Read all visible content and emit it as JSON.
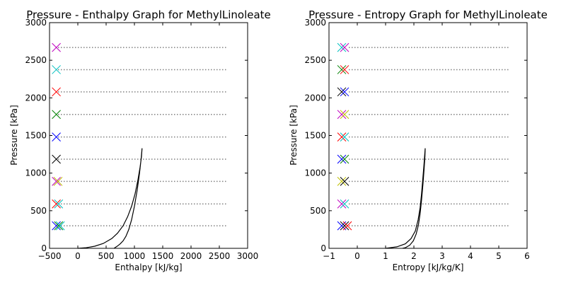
{
  "chart_data": [
    {
      "type": "line",
      "title": "Pressure - Enthalpy Graph for MethylLinoleate",
      "xlabel": "Enthalpy [kJ/kg]",
      "ylabel": "Pressure [kPa]",
      "xlim": [
        -500,
        3000
      ],
      "ylim": [
        0,
        3000
      ],
      "xticks": [
        -500,
        0,
        500,
        1000,
        1500,
        2000,
        2500,
        3000
      ],
      "yticks": [
        0,
        500,
        1000,
        1500,
        2000,
        2500,
        3000
      ],
      "xtick_labels": [
        "−500",
        "0",
        "500",
        "1000",
        "1500",
        "2000",
        "2500",
        "3000"
      ],
      "ytick_labels": [
        "0",
        "500",
        "1000",
        "1500",
        "2000",
        "2500",
        "3000"
      ],
      "grid": false,
      "saturation_dome": {
        "color": "#000000",
        "points": [
          [
            0,
            0
          ],
          [
            150,
            8
          ],
          [
            300,
            28
          ],
          [
            450,
            65
          ],
          [
            600,
            130
          ],
          [
            700,
            200
          ],
          [
            800,
            300
          ],
          [
            880,
            420
          ],
          [
            950,
            560
          ],
          [
            1010,
            720
          ],
          [
            1060,
            900
          ],
          [
            1100,
            1080
          ],
          [
            1125,
            1220
          ],
          [
            1135,
            1330
          ],
          [
            1120,
            1200
          ],
          [
            1090,
            1000
          ],
          [
            1050,
            780
          ],
          [
            1000,
            560
          ],
          [
            950,
            380
          ],
          [
            900,
            250
          ],
          [
            850,
            160
          ],
          [
            800,
            100
          ],
          [
            750,
            60
          ],
          [
            700,
            30
          ],
          [
            660,
            10
          ],
          [
            640,
            0
          ]
        ]
      },
      "isobars": {
        "color": "#808080",
        "x_range": [
          -350,
          2650
        ],
        "pressures": [
          300,
          590,
          890,
          1185,
          1480,
          1780,
          2080,
          2375,
          2670
        ]
      },
      "markers": [
        {
          "x": -380,
          "y": 300,
          "color": "#0000ff"
        },
        {
          "x": -340,
          "y": 300,
          "color": "#008000"
        },
        {
          "x": -310,
          "y": 300,
          "color": "#00bfbf"
        },
        {
          "x": -380,
          "y": 590,
          "color": "#ff0000"
        },
        {
          "x": -340,
          "y": 590,
          "color": "#00bfbf"
        },
        {
          "x": -380,
          "y": 890,
          "color": "#bf00bf"
        },
        {
          "x": -350,
          "y": 890,
          "color": "#bfbf00"
        },
        {
          "x": -380,
          "y": 1185,
          "color": "#000000"
        },
        {
          "x": -380,
          "y": 1480,
          "color": "#0000ff"
        },
        {
          "x": -380,
          "y": 1780,
          "color": "#008000"
        },
        {
          "x": -380,
          "y": 2080,
          "color": "#ff0000"
        },
        {
          "x": -380,
          "y": 2375,
          "color": "#00bfbf"
        },
        {
          "x": -380,
          "y": 2670,
          "color": "#bf00bf"
        }
      ]
    },
    {
      "type": "line",
      "title": "Pressure - Entropy Graph for MethylLinoleate",
      "xlabel": "Entropy [kJ/kg/K]",
      "ylabel": "Pressure [kPa]",
      "xlim": [
        -1,
        6
      ],
      "ylim": [
        0,
        3000
      ],
      "xticks": [
        -1,
        0,
        1,
        2,
        3,
        4,
        5,
        6
      ],
      "yticks": [
        0,
        500,
        1000,
        1500,
        2000,
        2500,
        3000
      ],
      "xtick_labels": [
        "−1",
        "0",
        "1",
        "2",
        "3",
        "4",
        "5",
        "6"
      ],
      "ytick_labels": [
        "0",
        "500",
        "1000",
        "1500",
        "2000",
        "2500",
        "3000"
      ],
      "grid": false,
      "saturation_dome": {
        "color": "#000000",
        "points": [
          [
            1.0,
            0
          ],
          [
            1.4,
            20
          ],
          [
            1.7,
            60
          ],
          [
            1.9,
            130
          ],
          [
            2.05,
            230
          ],
          [
            2.15,
            380
          ],
          [
            2.22,
            540
          ],
          [
            2.27,
            720
          ],
          [
            2.31,
            900
          ],
          [
            2.35,
            1080
          ],
          [
            2.38,
            1230
          ],
          [
            2.4,
            1330
          ],
          [
            2.39,
            1220
          ],
          [
            2.36,
            1050
          ],
          [
            2.32,
            850
          ],
          [
            2.27,
            640
          ],
          [
            2.22,
            460
          ],
          [
            2.16,
            310
          ],
          [
            2.08,
            190
          ],
          [
            1.98,
            100
          ],
          [
            1.85,
            40
          ],
          [
            1.7,
            8
          ],
          [
            1.6,
            0
          ]
        ]
      },
      "isobars": {
        "color": "#808080",
        "x_range": [
          -0.3,
          5.4
        ],
        "pressures": [
          300,
          590,
          890,
          1185,
          1480,
          1780,
          2080,
          2375,
          2670
        ]
      },
      "markers": [
        {
          "x": -0.55,
          "y": 300,
          "color": "#0000ff"
        },
        {
          "x": -0.45,
          "y": 300,
          "color": "#000000"
        },
        {
          "x": -0.35,
          "y": 300,
          "color": "#ff0000"
        },
        {
          "x": -0.55,
          "y": 590,
          "color": "#bf00bf"
        },
        {
          "x": -0.45,
          "y": 590,
          "color": "#00bfbf"
        },
        {
          "x": -0.55,
          "y": 890,
          "color": "#bfbf00"
        },
        {
          "x": -0.45,
          "y": 890,
          "color": "#000000"
        },
        {
          "x": -0.55,
          "y": 1185,
          "color": "#0000ff"
        },
        {
          "x": -0.45,
          "y": 1185,
          "color": "#008000"
        },
        {
          "x": -0.55,
          "y": 1480,
          "color": "#ff0000"
        },
        {
          "x": -0.45,
          "y": 1480,
          "color": "#00bfbf"
        },
        {
          "x": -0.55,
          "y": 1780,
          "color": "#bf00bf"
        },
        {
          "x": -0.45,
          "y": 1780,
          "color": "#bfbf00"
        },
        {
          "x": -0.55,
          "y": 2080,
          "color": "#000000"
        },
        {
          "x": -0.45,
          "y": 2080,
          "color": "#0000ff"
        },
        {
          "x": -0.55,
          "y": 2375,
          "color": "#008000"
        },
        {
          "x": -0.45,
          "y": 2375,
          "color": "#ff0000"
        },
        {
          "x": -0.55,
          "y": 2670,
          "color": "#00bfbf"
        },
        {
          "x": -0.45,
          "y": 2670,
          "color": "#bf00bf"
        }
      ]
    }
  ]
}
